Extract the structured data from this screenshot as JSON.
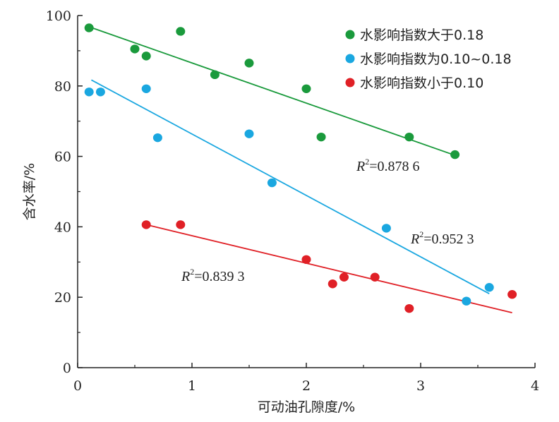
{
  "chart_data": {
    "type": "scatter",
    "title": "",
    "xlabel": "可动油孔隙度/%",
    "ylabel": "含水率/%",
    "xlim": [
      0,
      4
    ],
    "ylim": [
      0,
      100
    ],
    "x_ticks": [
      "0",
      "1",
      "2",
      "3",
      "4"
    ],
    "y_ticks": [
      "0",
      "20",
      "40",
      "60",
      "80",
      "100"
    ],
    "legend_position": "top-right",
    "series": [
      {
        "name": "水影响指数大于0.18",
        "color": "#1a9a3c",
        "points": [
          [
            0.1,
            96.5
          ],
          [
            0.5,
            90.5
          ],
          [
            0.6,
            88.5
          ],
          [
            0.9,
            95.5
          ],
          [
            1.2,
            83.2
          ],
          [
            1.5,
            86.5
          ],
          [
            2.0,
            79.2
          ],
          [
            2.13,
            65.5
          ],
          [
            2.9,
            65.5
          ],
          [
            3.3,
            60.5
          ]
        ],
        "fit": {
          "x": [
            0.1,
            3.3
          ],
          "y": [
            96.8,
            60.3
          ]
        },
        "r2_label": {
          "prefix": "R",
          "sup": "2",
          "value": "=0.878 6"
        }
      },
      {
        "name": "水影响指数为0.10~0.18",
        "color": "#1aa7e0",
        "points": [
          [
            0.1,
            78.3
          ],
          [
            0.2,
            78.3
          ],
          [
            0.6,
            79.2
          ],
          [
            0.7,
            65.3
          ],
          [
            1.5,
            66.4
          ],
          [
            1.7,
            52.5
          ],
          [
            2.7,
            39.6
          ],
          [
            3.4,
            18.9
          ],
          [
            3.6,
            22.8
          ]
        ],
        "fit": {
          "x": [
            0.12,
            3.6
          ],
          "y": [
            81.7,
            21.0
          ]
        },
        "r2_label": {
          "prefix": "R",
          "sup": "2",
          "value": "=0.952 3"
        }
      },
      {
        "name": "水影响指数小于0.10",
        "color": "#e02026",
        "points": [
          [
            0.6,
            40.6
          ],
          [
            0.9,
            40.6
          ],
          [
            2.0,
            30.7
          ],
          [
            2.23,
            23.8
          ],
          [
            2.33,
            25.7
          ],
          [
            2.6,
            25.7
          ],
          [
            2.9,
            16.8
          ],
          [
            3.8,
            20.8
          ]
        ],
        "fit": {
          "x": [
            0.6,
            3.8
          ],
          "y": [
            40.6,
            15.6
          ]
        },
        "r2_label": {
          "prefix": "R",
          "sup": "2",
          "value": "=0.839 3"
        }
      }
    ]
  }
}
